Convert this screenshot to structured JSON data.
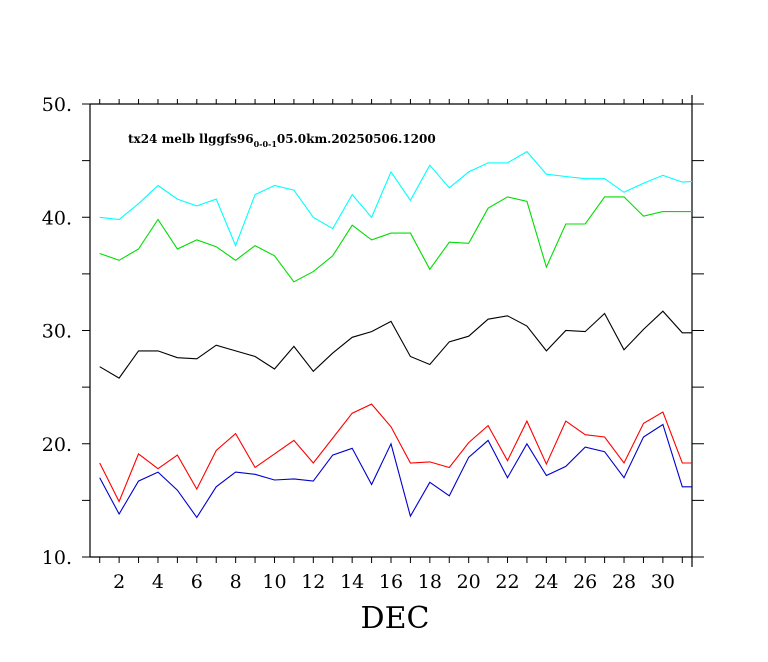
{
  "chart_data": {
    "type": "line",
    "title_parts": {
      "prefix": "tx24  melb  llggfs96",
      "sub": "0-0-1",
      "suffix": "05.0km.20250506.1200"
    },
    "xlabel": "DEC",
    "ylabel": "",
    "xlim": [
      0.5,
      31.5
    ],
    "ylim": [
      10,
      50
    ],
    "xticks": [
      1,
      2,
      3,
      4,
      5,
      6,
      7,
      8,
      9,
      10,
      11,
      12,
      13,
      14,
      15,
      16,
      17,
      18,
      19,
      20,
      21,
      22,
      23,
      24,
      25,
      26,
      27,
      28,
      29,
      30,
      31
    ],
    "xtick_labels": [
      "2",
      "4",
      "6",
      "8",
      "10",
      "12",
      "14",
      "16",
      "18",
      "20",
      "22",
      "24",
      "26",
      "28",
      "30"
    ],
    "xtick_label_values": [
      2,
      4,
      6,
      8,
      10,
      12,
      14,
      16,
      18,
      20,
      22,
      24,
      26,
      28,
      30
    ],
    "yticks": [
      10,
      15,
      20,
      25,
      30,
      35,
      40,
      45,
      50
    ],
    "ytick_labels": [
      "10.",
      "20.",
      "30.",
      "40.",
      "50."
    ],
    "ytick_label_values": [
      10,
      20,
      30,
      40,
      50
    ],
    "grid": false,
    "x": [
      1,
      2,
      3,
      4,
      5,
      6,
      7,
      8,
      9,
      10,
      11,
      12,
      13,
      14,
      15,
      16,
      17,
      18,
      19,
      20,
      21,
      22,
      23,
      24,
      25,
      26,
      27,
      28,
      29,
      30,
      31,
      32
    ],
    "series": [
      {
        "color": "#00ffff",
        "values": [
          40.0,
          39.8,
          41.2,
          42.8,
          41.6,
          41.0,
          41.6,
          37.5,
          42.0,
          42.8,
          42.4,
          40.0,
          39.0,
          42.0,
          40.0,
          44.0,
          41.5,
          44.6,
          42.6,
          44.0,
          44.8,
          44.8,
          45.8,
          43.8,
          43.6,
          43.4,
          43.4,
          42.2,
          43.0,
          43.7,
          43.1,
          43.2
        ]
      },
      {
        "color": "#00dd00",
        "values": [
          36.8,
          36.2,
          37.2,
          39.8,
          37.2,
          38.0,
          37.4,
          36.2,
          37.5,
          36.6,
          34.3,
          35.2,
          36.6,
          39.3,
          38.0,
          38.6,
          38.6,
          35.4,
          37.8,
          37.7,
          40.8,
          41.8,
          41.4,
          35.6,
          39.4,
          39.4,
          41.8,
          41.8,
          40.1,
          40.5,
          40.5,
          40.5
        ]
      },
      {
        "color": "#000000",
        "values": [
          26.8,
          25.8,
          28.2,
          28.2,
          27.6,
          27.5,
          28.7,
          28.2,
          27.7,
          26.6,
          28.6,
          26.4,
          28.0,
          29.4,
          29.9,
          30.8,
          27.7,
          27.0,
          29.0,
          29.5,
          31.0,
          31.3,
          30.4,
          28.2,
          30.0,
          29.9,
          31.5,
          28.3,
          30.1,
          31.7,
          29.8,
          29.8
        ]
      },
      {
        "color": "#ff0000",
        "values": [
          18.3,
          14.9,
          19.1,
          17.8,
          19.0,
          16.0,
          19.4,
          20.9,
          17.9,
          19.1,
          20.3,
          18.3,
          20.5,
          22.7,
          23.5,
          21.5,
          18.3,
          18.4,
          17.9,
          20.1,
          21.6,
          18.5,
          22.0,
          18.2,
          22.0,
          20.8,
          20.6,
          18.3,
          21.8,
          22.8,
          18.3,
          18.3
        ]
      },
      {
        "color": "#0000cc",
        "values": [
          17.0,
          13.8,
          16.7,
          17.5,
          15.9,
          13.5,
          16.2,
          17.5,
          17.3,
          16.8,
          16.9,
          16.7,
          19.0,
          19.6,
          16.4,
          20.0,
          13.6,
          16.6,
          15.4,
          18.8,
          20.3,
          17.0,
          20.0,
          17.2,
          18.0,
          19.7,
          19.3,
          17.0,
          20.6,
          21.7,
          16.2,
          16.2
        ]
      }
    ]
  }
}
